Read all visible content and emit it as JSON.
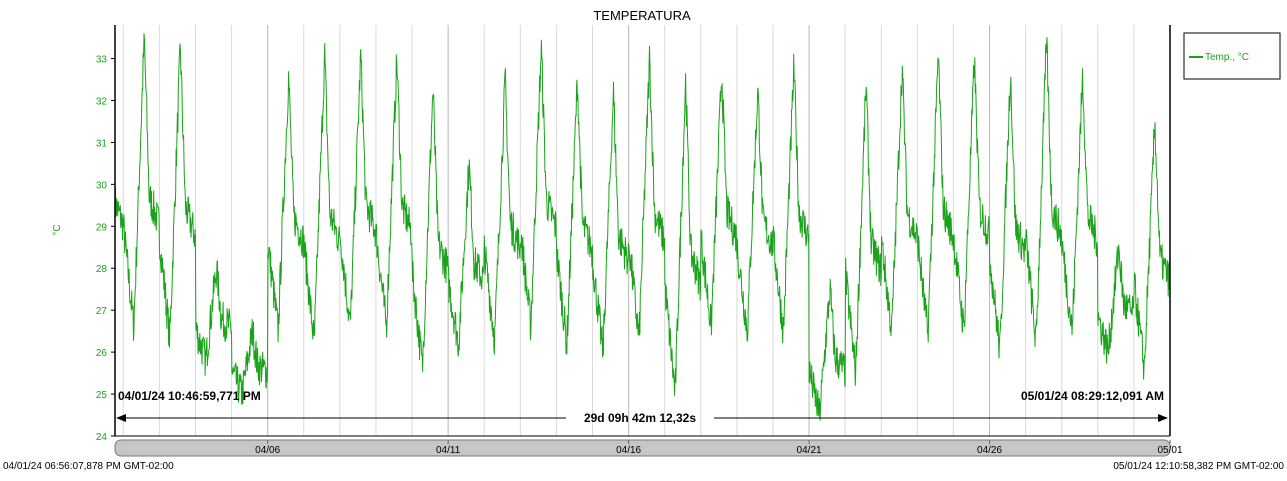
{
  "chart_data": {
    "type": "line",
    "title": "TEMPERATURA",
    "ylabel": "°C",
    "ylim": [
      24,
      33.8
    ],
    "yticks": [
      24,
      25,
      26,
      27,
      28,
      29,
      30,
      31,
      32,
      33
    ],
    "x_date_ticks": [
      "04/06",
      "04/11",
      "04/16",
      "04/21",
      "04/26",
      "05/01"
    ],
    "grid": true,
    "legend_position": "top-right",
    "series": [
      {
        "name": "Temp., °C",
        "color": "#1aa31a",
        "daily_profile": [
          {
            "date": "04/02",
            "min": 26.6,
            "max": 33.5
          },
          {
            "date": "04/03",
            "min": 26.3,
            "max": 33.3
          },
          {
            "date": "04/04",
            "min": 25.8,
            "max": 28.0
          },
          {
            "date": "04/05",
            "min": 25.0,
            "max": 26.5
          },
          {
            "date": "04/06",
            "min": 26.5,
            "max": 32.6
          },
          {
            "date": "04/07",
            "min": 26.2,
            "max": 33.1
          },
          {
            "date": "04/08",
            "min": 26.6,
            "max": 33.1
          },
          {
            "date": "04/09",
            "min": 26.6,
            "max": 33.0
          },
          {
            "date": "04/10",
            "min": 25.6,
            "max": 32.3
          },
          {
            "date": "04/11",
            "min": 26.2,
            "max": 30.5
          },
          {
            "date": "04/12",
            "min": 26.3,
            "max": 32.5
          },
          {
            "date": "04/13",
            "min": 26.6,
            "max": 33.3
          },
          {
            "date": "04/14",
            "min": 26.2,
            "max": 32.5
          },
          {
            "date": "04/15",
            "min": 26.0,
            "max": 32.2
          },
          {
            "date": "04/16",
            "min": 26.3,
            "max": 33.0
          },
          {
            "date": "04/17",
            "min": 25.0,
            "max": 32.5
          },
          {
            "date": "04/18",
            "min": 26.6,
            "max": 32.7
          },
          {
            "date": "04/19",
            "min": 26.5,
            "max": 32.3
          },
          {
            "date": "04/20",
            "min": 26.5,
            "max": 32.8
          },
          {
            "date": "04/21",
            "min": 24.5,
            "max": 27.5
          },
          {
            "date": "04/22",
            "min": 25.5,
            "max": 32.4
          },
          {
            "date": "04/23",
            "min": 26.5,
            "max": 32.8
          },
          {
            "date": "04/24",
            "min": 26.4,
            "max": 33.1
          },
          {
            "date": "04/25",
            "min": 26.5,
            "max": 33.0
          },
          {
            "date": "04/26",
            "min": 26.0,
            "max": 32.7
          },
          {
            "date": "04/27",
            "min": 26.2,
            "max": 33.5
          },
          {
            "date": "04/28",
            "min": 26.5,
            "max": 32.6
          },
          {
            "date": "04/29",
            "min": 26.0,
            "max": 28.5
          },
          {
            "date": "04/30",
            "min": 25.6,
            "max": 31.5
          },
          {
            "date": "05/01",
            "min": 26.2,
            "max": 33.4
          }
        ]
      }
    ],
    "range_start_label": "04/01/24 10:46:59,771 PM",
    "range_end_label": "05/01/24 08:29:12,091 AM",
    "range_duration_label": "29d 09h 42m 12,32s",
    "timeline_start_label": "04/01/24 06:56:07,878 PM GMT-02:00",
    "timeline_end_label": "05/01/24 12:10:58,382 PM GMT-02:00"
  }
}
